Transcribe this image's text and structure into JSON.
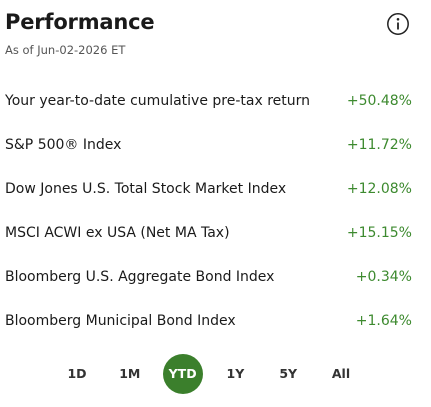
{
  "header": {
    "title": "Performance",
    "subtitle": "As of Jun-02-2026 ET"
  },
  "rows": [
    {
      "label": "Your year-to-date cumulative pre-tax return",
      "value": "+50.48%"
    },
    {
      "label": "S&P 500® Index",
      "value": "+11.72%"
    },
    {
      "label": "Dow Jones U.S. Total Stock Market Index",
      "value": "+12.08%"
    },
    {
      "label": "MSCI ACWI ex USA (Net MA Tax)",
      "value": "+15.15%"
    },
    {
      "label": "Bloomberg U.S. Aggregate Bond Index",
      "value": "+0.34%"
    },
    {
      "label": "Bloomberg Municipal Bond Index",
      "value": "+1.64%"
    }
  ],
  "tabs": [
    {
      "label": "1D"
    },
    {
      "label": "1M"
    },
    {
      "label": "YTD",
      "selected": true
    },
    {
      "label": "1Y"
    },
    {
      "label": "5Y"
    },
    {
      "label": "All"
    }
  ]
}
